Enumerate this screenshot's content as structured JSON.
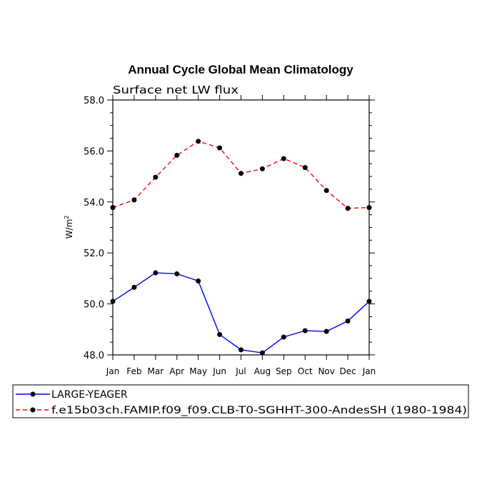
{
  "chart_data": {
    "type": "line",
    "title": "Annual Cycle Global Mean Climatology",
    "subtitle": "Surface net LW flux",
    "xlabel": "",
    "ylabel": "W/m",
    "ylabel_superscript": "2",
    "categories": [
      "Jan",
      "Feb",
      "Mar",
      "Apr",
      "May",
      "Jun",
      "Jul",
      "Aug",
      "Sep",
      "Oct",
      "Nov",
      "Dec",
      "Jan"
    ],
    "ylim": [
      48.0,
      58.0
    ],
    "yticks": [
      "48.0",
      "50.0",
      "52.0",
      "54.0",
      "56.0",
      "58.0"
    ],
    "grid": false,
    "series": [
      {
        "name": "LARGE-YEAGER",
        "color": "#0000ff",
        "dash": "solid",
        "values": [
          50.1,
          50.65,
          51.22,
          51.18,
          50.9,
          48.8,
          48.2,
          48.08,
          48.7,
          48.95,
          48.92,
          49.33,
          50.1
        ]
      },
      {
        "name": "f.e15b03ch.FAMIP.f09_f09.CLB-T0-SGHHT-300-AndesSH (1980-1984)",
        "color": "#ff0000",
        "dash": "dashed",
        "values": [
          53.78,
          54.08,
          54.97,
          55.83,
          56.38,
          56.12,
          55.12,
          55.3,
          55.7,
          55.35,
          54.45,
          53.75,
          53.78
        ]
      }
    ]
  }
}
